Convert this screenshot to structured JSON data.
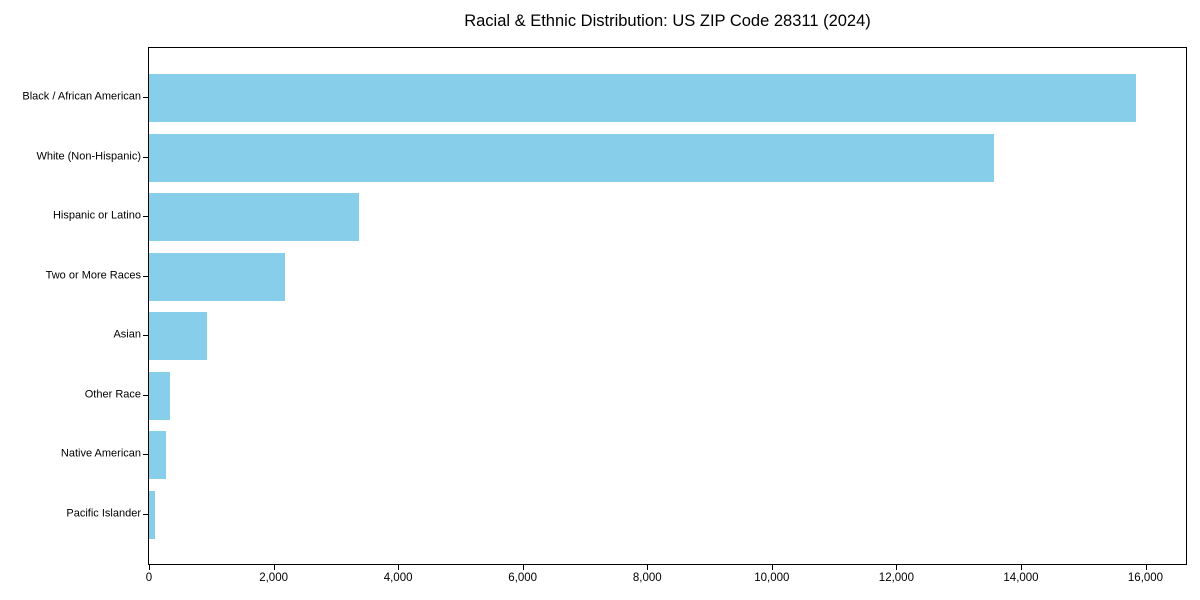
{
  "chart_data": {
    "type": "bar",
    "orientation": "horizontal",
    "title": "Racial & Ethnic Distribution: US ZIP Code 28311 (2024)",
    "xlabel": "",
    "ylabel": "",
    "categories": [
      "Black / African American",
      "White (Non-Hispanic)",
      "Hispanic or Latino",
      "Two or More Races",
      "Asian",
      "Other Race",
      "Native American",
      "Pacific Islander"
    ],
    "values": [
      15850,
      13560,
      3370,
      2190,
      930,
      335,
      280,
      90
    ],
    "xlim": [
      0,
      16650
    ],
    "x_ticks": [
      0,
      2000,
      4000,
      6000,
      8000,
      10000,
      12000,
      14000,
      16000
    ],
    "x_tick_labels": [
      "0",
      "2,000",
      "4,000",
      "6,000",
      "8,000",
      "10,000",
      "12,000",
      "14,000",
      "16,000"
    ],
    "bar_color": "#87CEEB",
    "axis_color": "#000000",
    "background_color": "#ffffff",
    "grid": false,
    "legend": null
  }
}
